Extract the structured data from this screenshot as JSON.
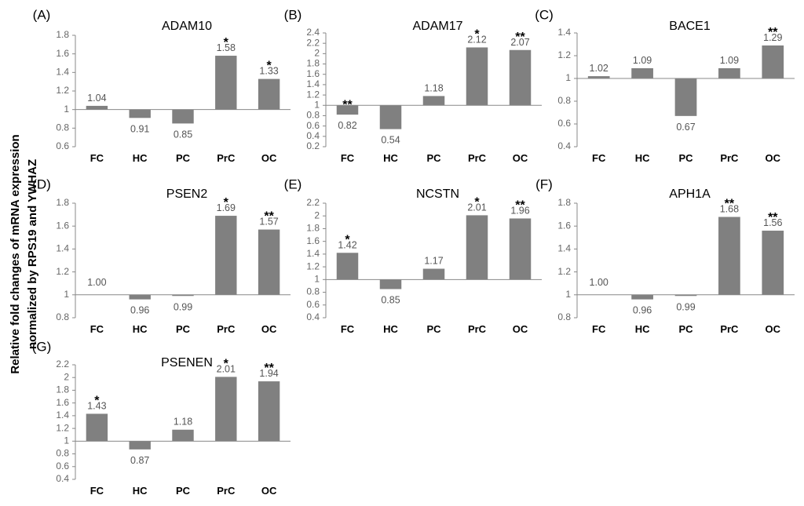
{
  "figure": {
    "y_axis_label_line1": "Relative fold changes of mRNA expression",
    "y_axis_label_line2": "normalized by RPS19 and YWHAZ",
    "bar_color": "#808080",
    "baseline_color": "#888888"
  },
  "chart_data": [
    {
      "type": "bar",
      "panel": "(A)",
      "title": "ADAM10",
      "categories": [
        "FC",
        "HC",
        "PC",
        "PrC",
        "OC"
      ],
      "values": [
        1.04,
        0.91,
        0.85,
        1.58,
        1.33
      ],
      "value_labels": [
        "1.04",
        "0.91",
        "0.85",
        "1.58",
        "1.33"
      ],
      "significance": [
        "",
        "",
        "",
        "*",
        "*"
      ],
      "baseline": 1,
      "ylim": [
        0.6,
        1.8
      ],
      "yticks": [
        "0.6",
        "0.8",
        "1",
        "1.2",
        "1.4",
        "1.6",
        "1.8"
      ]
    },
    {
      "type": "bar",
      "panel": "(B)",
      "title": "ADAM17",
      "categories": [
        "FC",
        "HC",
        "PC",
        "PrC",
        "OC"
      ],
      "values": [
        0.82,
        0.54,
        1.18,
        2.12,
        2.07
      ],
      "value_labels": [
        "0.82",
        "0.54",
        "1.18",
        "2.12",
        "2.07"
      ],
      "significance": [
        "**",
        "",
        "",
        "*",
        "**"
      ],
      "baseline": 1,
      "ylim": [
        0.2,
        2.4
      ],
      "yticks": [
        "0.2",
        "0.4",
        "0.6",
        "0.8",
        "1",
        "1.2",
        "1.4",
        "1.6",
        "1.8",
        "2",
        "2.2",
        "2.4"
      ]
    },
    {
      "type": "bar",
      "panel": "(C)",
      "title": "BACE1",
      "categories": [
        "FC",
        "HC",
        "PC",
        "PrC",
        "OC"
      ],
      "values": [
        1.02,
        1.09,
        0.67,
        1.09,
        1.29
      ],
      "value_labels": [
        "1.02",
        "1.09",
        "0.67",
        "1.09",
        "1.29"
      ],
      "significance": [
        "",
        "",
        "",
        "",
        "**"
      ],
      "baseline": 1,
      "ylim": [
        0.4,
        1.4
      ],
      "yticks": [
        "0.4",
        "0.6",
        "0.8",
        "1",
        "1.2",
        "1.4"
      ]
    },
    {
      "type": "bar",
      "panel": "(D)",
      "title": "PSEN2",
      "categories": [
        "FC",
        "HC",
        "PC",
        "PrC",
        "OC"
      ],
      "values": [
        1.0,
        0.96,
        0.99,
        1.69,
        1.57
      ],
      "value_labels": [
        "1.00",
        "0.96",
        "0.99",
        "1.69",
        "1.57"
      ],
      "significance": [
        "",
        "",
        "",
        "*",
        "**"
      ],
      "baseline": 1,
      "ylim": [
        0.8,
        1.8
      ],
      "yticks": [
        "0.8",
        "1",
        "1.2",
        "1.4",
        "1.6",
        "1.8"
      ]
    },
    {
      "type": "bar",
      "panel": "(E)",
      "title": "NCSTN",
      "categories": [
        "FC",
        "HC",
        "PC",
        "PrC",
        "OC"
      ],
      "values": [
        1.42,
        0.85,
        1.17,
        2.01,
        1.96
      ],
      "value_labels": [
        "1.42",
        "0.85",
        "1.17",
        "2.01",
        "1.96"
      ],
      "significance": [
        "*",
        "",
        "",
        "*",
        "**"
      ],
      "baseline": 1,
      "ylim": [
        0.4,
        2.2
      ],
      "yticks": [
        "0.4",
        "0.6",
        "0.8",
        "1",
        "1.2",
        "1.4",
        "1.6",
        "1.8",
        "2",
        "2.2"
      ]
    },
    {
      "type": "bar",
      "panel": "(F)",
      "title": "APH1A",
      "categories": [
        "FC",
        "HC",
        "PC",
        "PrC",
        "OC"
      ],
      "values": [
        1.0,
        0.96,
        0.99,
        1.68,
        1.56
      ],
      "value_labels": [
        "1.00",
        "0.96",
        "0.99",
        "1.68",
        "1.56"
      ],
      "significance": [
        "",
        "",
        "",
        "**",
        "**"
      ],
      "baseline": 1,
      "ylim": [
        0.8,
        1.8
      ],
      "yticks": [
        "0.8",
        "1",
        "1.2",
        "1.4",
        "1.6",
        "1.8"
      ]
    },
    {
      "type": "bar",
      "panel": "(G)",
      "title": "PSENEN",
      "categories": [
        "FC",
        "HC",
        "PC",
        "PrC",
        "OC"
      ],
      "values": [
        1.43,
        0.87,
        1.18,
        2.01,
        1.94
      ],
      "value_labels": [
        "1.43",
        "0.87",
        "1.18",
        "2.01",
        "1.94"
      ],
      "significance": [
        "*",
        "",
        "",
        "*",
        "**"
      ],
      "baseline": 1,
      "ylim": [
        0.4,
        2.2
      ],
      "yticks": [
        "0.4",
        "0.6",
        "0.8",
        "1",
        "1.2",
        "1.4",
        "1.6",
        "1.8",
        "2",
        "2.2"
      ]
    }
  ]
}
